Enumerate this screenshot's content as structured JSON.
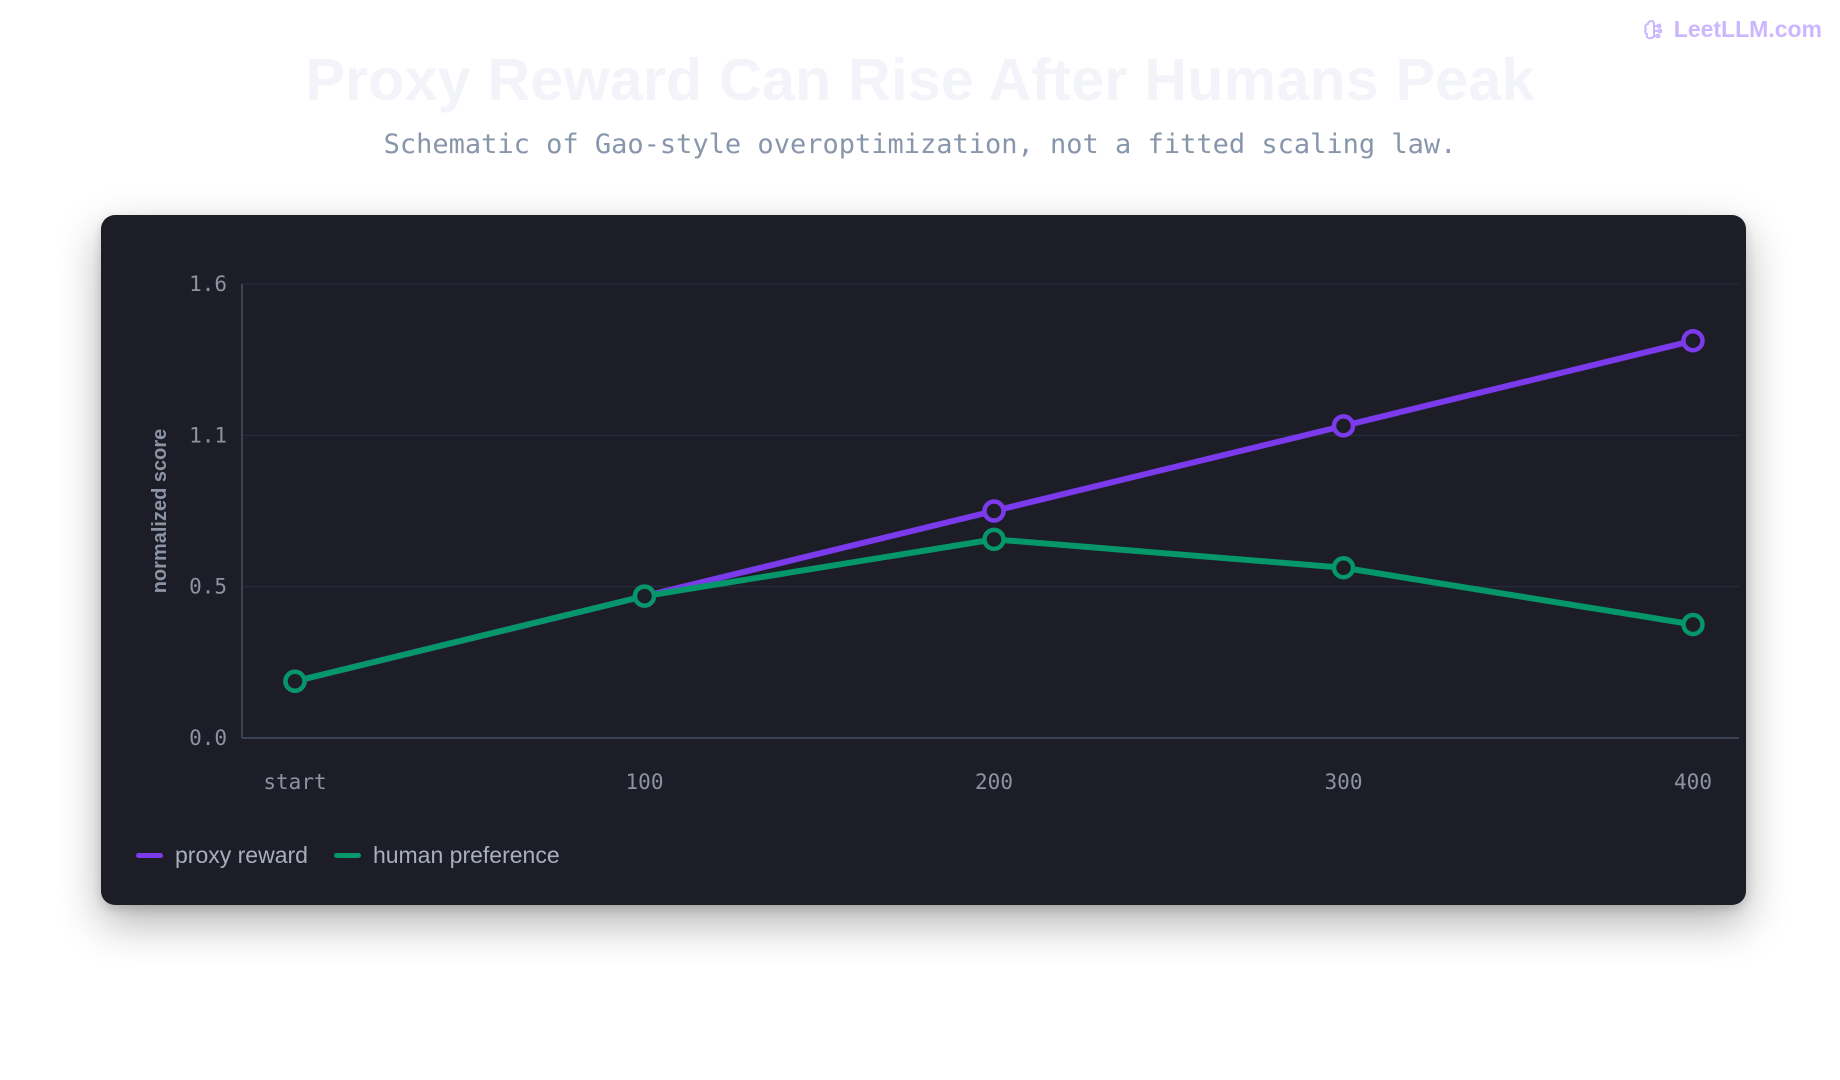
{
  "brand": {
    "name": "LeetLLM.com",
    "icon": "brain-icon",
    "color": "#cbb7ff"
  },
  "header": {
    "title": "Proxy Reward Can Rise After Humans Peak",
    "subtitle": "Schematic of Gao-style overoptimization, not a fitted scaling law."
  },
  "chart_data": {
    "type": "line",
    "title": "Proxy Reward Can Rise After Humans Peak",
    "subtitle": "Schematic of Gao-style overoptimization, not a fitted scaling law.",
    "xlabel": "",
    "ylabel": "normalized score",
    "categories": [
      "start",
      "100",
      "200",
      "300",
      "400"
    ],
    "yticks": [
      "0.0",
      "0.5",
      "1.1",
      "1.6"
    ],
    "ylim": [
      0,
      1.6
    ],
    "grid": true,
    "legend_position": "bottom-left",
    "series": [
      {
        "name": "proxy reward",
        "color": "#7c3aed",
        "values": [
          0.2,
          0.5,
          0.8,
          1.1,
          1.4
        ]
      },
      {
        "name": "human preference",
        "color": "#059669",
        "values": [
          0.2,
          0.5,
          0.7,
          0.6,
          0.4
        ]
      }
    ]
  }
}
